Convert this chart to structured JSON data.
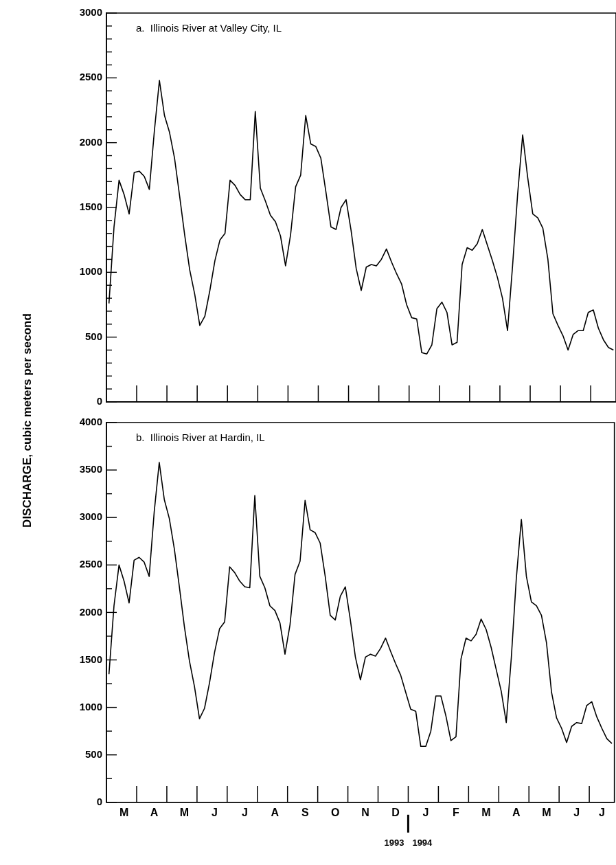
{
  "chart_data": [
    {
      "type": "line",
      "title": "a.  Illinois River at Valley City, IL",
      "ylabel": "DISCHARGE, cubic meters per second",
      "legend": false,
      "grid": false,
      "marker": "none",
      "tick_labels": "y",
      "categories": [
        null,
        null,
        null,
        null,
        null,
        null,
        null,
        null,
        null,
        null,
        null,
        null,
        null,
        null,
        null,
        null,
        null,
        null,
        null,
        null,
        null,
        null,
        null,
        null,
        null,
        null,
        null,
        null,
        null,
        null,
        null,
        null,
        null,
        null,
        null,
        null,
        null,
        null,
        null,
        null,
        null,
        null,
        null,
        null,
        null,
        null,
        null,
        null,
        null,
        null,
        null,
        null,
        null,
        null,
        null,
        null,
        null,
        null,
        null,
        null,
        null,
        null,
        null,
        null,
        null,
        null,
        null,
        null,
        null,
        null,
        null,
        null,
        null,
        null,
        null,
        null,
        null,
        null,
        null,
        null,
        null,
        null,
        null,
        null,
        null,
        null,
        null,
        null,
        null,
        null,
        null,
        null,
        null,
        null,
        null,
        null,
        null,
        null,
        null,
        null,
        null
      ],
      "series": [
        {
          "color": "#000000",
          "values": [
            760,
            1350,
            1710,
            1600,
            1450,
            1770,
            1780,
            1740,
            1640,
            2090,
            2480,
            2210,
            2080,
            1880,
            1590,
            1290,
            1020,
            830,
            590,
            660,
            860,
            1090,
            1250,
            1300,
            1710,
            1670,
            1600,
            1560,
            1560,
            2240,
            1650,
            1550,
            1440,
            1390,
            1280,
            1050,
            1290,
            1660,
            1750,
            2210,
            1990,
            1970,
            1880,
            1620,
            1350,
            1330,
            1500,
            1560,
            1320,
            1030,
            860,
            1040,
            1060,
            1050,
            1100,
            1180,
            1080,
            990,
            910,
            750,
            650,
            640,
            380,
            370,
            440,
            720,
            770,
            690,
            440,
            460,
            1060,
            1190,
            1170,
            1220,
            1330,
            1210,
            1090,
            960,
            800,
            550,
            1050,
            1600,
            2060,
            1730,
            1450,
            1420,
            1340,
            1100,
            680,
            590,
            510,
            400,
            520,
            550,
            550,
            690,
            710,
            570,
            480,
            420,
            400
          ]
        }
      ],
      "ylim": [
        0,
        3000
      ],
      "yticks": [
        0,
        {
          "value": 100,
          "label": null
        },
        {
          "value": 200,
          "label": null
        },
        {
          "value": 300,
          "label": null
        },
        {
          "value": 400,
          "label": null
        },
        500,
        {
          "value": 600,
          "label": null
        },
        {
          "value": 700,
          "label": null
        },
        {
          "value": 800,
          "label": null
        },
        {
          "value": 900,
          "label": null
        },
        1000,
        {
          "value": 1100,
          "label": null
        },
        {
          "value": 1200,
          "label": null
        },
        {
          "value": 1300,
          "label": null
        },
        {
          "value": 1400,
          "label": null
        },
        1500,
        {
          "value": 1600,
          "label": null
        },
        {
          "value": 1700,
          "label": null
        },
        {
          "value": 1800,
          "label": null
        },
        {
          "value": 1900,
          "label": null
        },
        2000,
        {
          "value": 2100,
          "label": null
        },
        {
          "value": 2200,
          "label": null
        },
        {
          "value": 2300,
          "label": null
        },
        {
          "value": 2400,
          "label": null
        },
        2500,
        {
          "value": 2600,
          "label": null
        },
        {
          "value": 2700,
          "label": null
        },
        {
          "value": 2800,
          "label": null
        },
        {
          "value": 2900,
          "label": null
        },
        3000
      ]
    },
    {
      "type": "line",
      "title": "b.  Illinois River at Hardin, IL",
      "legend": false,
      "grid": false,
      "marker": "none",
      "annotations": [
        "1993",
        "1994"
      ],
      "categories": [
        null,
        null,
        null,
        "M",
        null,
        null,
        null,
        null,
        null,
        "A",
        null,
        null,
        null,
        null,
        null,
        "M",
        null,
        null,
        null,
        null,
        null,
        "J",
        null,
        null,
        null,
        null,
        null,
        "J",
        null,
        null,
        null,
        null,
        null,
        "A",
        null,
        null,
        null,
        null,
        null,
        "S",
        null,
        null,
        null,
        null,
        null,
        "O",
        null,
        null,
        null,
        null,
        null,
        "N",
        null,
        null,
        null,
        null,
        null,
        "D",
        null,
        null,
        null,
        null,
        null,
        "J",
        null,
        null,
        null,
        null,
        null,
        "F",
        null,
        null,
        null,
        null,
        null,
        "M",
        null,
        null,
        null,
        null,
        null,
        "A",
        null,
        null,
        null,
        null,
        null,
        "M",
        null,
        null,
        null,
        null,
        null,
        "J",
        null,
        null,
        null,
        null,
        "J",
        null,
        null
      ],
      "series": [
        {
          "color": "#000000",
          "values": [
            1350,
            2070,
            2500,
            2330,
            2100,
            2550,
            2580,
            2530,
            2380,
            3060,
            3580,
            3190,
            2990,
            2670,
            2270,
            1850,
            1490,
            1220,
            880,
            990,
            1260,
            1580,
            1830,
            1900,
            2480,
            2420,
            2330,
            2270,
            2260,
            3230,
            2380,
            2260,
            2070,
            2020,
            1890,
            1560,
            1870,
            2400,
            2540,
            3180,
            2870,
            2840,
            2730,
            2380,
            1970,
            1920,
            2170,
            2270,
            1920,
            1530,
            1290,
            1530,
            1560,
            1540,
            1620,
            1730,
            1590,
            1460,
            1340,
            1160,
            980,
            960,
            590,
            590,
            750,
            1120,
            1120,
            910,
            650,
            690,
            1510,
            1730,
            1700,
            1770,
            1930,
            1820,
            1630,
            1400,
            1170,
            840,
            1520,
            2360,
            2980,
            2380,
            2110,
            2070,
            1970,
            1680,
            1160,
            890,
            780,
            630,
            800,
            840,
            830,
            1020,
            1060,
            900,
            780,
            670,
            620
          ]
        }
      ],
      "ylim": [
        0,
        4000
      ],
      "yticks": [
        0,
        {
          "value": 250,
          "label": null
        },
        500,
        {
          "value": 750,
          "label": null
        },
        1000,
        {
          "value": 1250,
          "label": null
        },
        1500,
        {
          "value": 1750,
          "label": null
        },
        2000,
        {
          "value": 2250,
          "label": null
        },
        2500,
        {
          "value": 2750,
          "label": null
        },
        3000,
        {
          "value": 3250,
          "label": null
        },
        3500,
        {
          "value": 3750,
          "label": null
        },
        4000
      ]
    }
  ]
}
